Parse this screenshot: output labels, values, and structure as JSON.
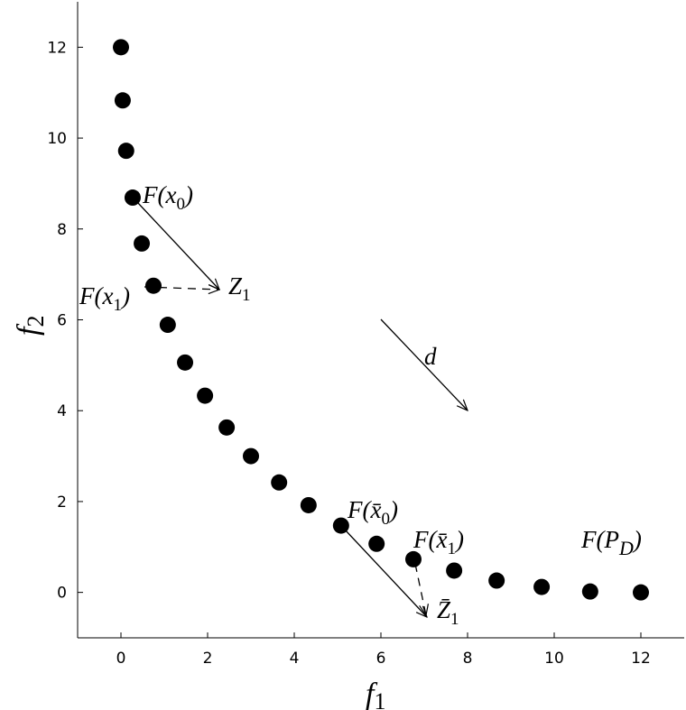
{
  "chart_data": {
    "type": "scatter",
    "xlabel": {
      "text": "f",
      "sub": "1"
    },
    "ylabel": {
      "text": "f",
      "sub": "2"
    },
    "x": [
      0,
      0.04,
      0.12,
      0.27,
      0.48,
      0.75,
      1.08,
      1.48,
      1.94,
      2.44,
      3.0,
      3.65,
      4.33,
      5.08,
      5.9,
      6.75,
      7.69,
      8.67,
      9.71,
      10.83,
      12
    ],
    "values": [
      12,
      10.83,
      9.72,
      8.69,
      7.68,
      6.75,
      5.89,
      5.06,
      4.33,
      3.63,
      3.0,
      2.42,
      1.92,
      1.47,
      1.07,
      0.73,
      0.48,
      0.26,
      0.12,
      0.02,
      0
    ],
    "color": "#000000",
    "xlim": [
      -1,
      13
    ],
    "ylim": [
      -1,
      13
    ],
    "xticks": [
      0,
      2,
      4,
      6,
      8,
      10,
      12
    ],
    "yticks": [
      0,
      2,
      4,
      6,
      8,
      10,
      12
    ],
    "annotations": {
      "fx0": {
        "text": "F(x",
        "sub": "0",
        "tail": ")"
      },
      "fx1": {
        "text": "F(x",
        "sub": "1",
        "tail": ")"
      },
      "z1": {
        "text": "Z",
        "sub": "1"
      },
      "d": "d",
      "fxb0": {
        "text": "F(x̄",
        "sub": "0",
        "tail": ")"
      },
      "fxb1": {
        "text": "F(x̄",
        "sub": "1",
        "tail": ")"
      },
      "zb1": {
        "text": "Z̄",
        "sub": "1"
      },
      "fpd": {
        "text": "F(P",
        "sub": "D",
        "tail": ")"
      }
    }
  }
}
